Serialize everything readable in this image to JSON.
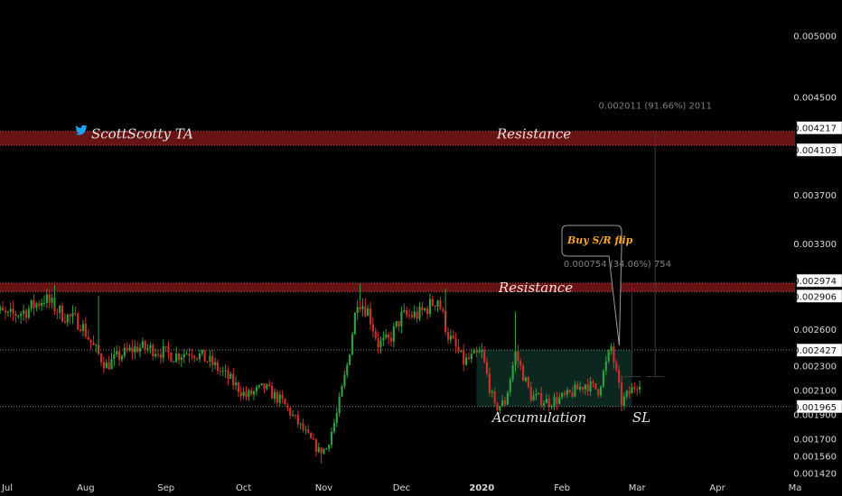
{
  "author": {
    "handle": "ScottScotty TA",
    "icon": "twitter-bird-icon"
  },
  "colors": {
    "background": "#000000",
    "up": "#2e9e3e",
    "down": "#c9302c",
    "resistance": "#8b1a1a",
    "accumulation": "#0e2e24",
    "callout_text": "#f5a623",
    "twitter": "#1da1f2"
  },
  "annotations": {
    "resistance_top": "Resistance",
    "resistance_mid": "Resistance",
    "accumulation": "Accumulation",
    "stop_loss": "SL",
    "callout": "Buy S/R flip",
    "measure_large": "0.002011 (91.66%) 2011",
    "measure_small": "0.000754 (34.06%) 754"
  },
  "chart_data": {
    "type": "candlestick",
    "title": "",
    "xlabel": "",
    "ylabel": "",
    "y_axis_position": "right",
    "ylim": [
      0.00138,
      0.00516
    ],
    "y_ticks": [
      "0.005000",
      "0.004500",
      "0.003700",
      "0.003300",
      "0.002600",
      "0.002300",
      "0.002100",
      "0.001900",
      "0.001700",
      "0.001560",
      "0.001420"
    ],
    "x_ticks": [
      {
        "label": "Jul",
        "date": "2019-07-01"
      },
      {
        "label": "Aug",
        "date": "2019-08-01"
      },
      {
        "label": "Sep",
        "date": "2019-09-01"
      },
      {
        "label": "Oct",
        "date": "2019-10-01"
      },
      {
        "label": "Nov",
        "date": "2019-11-01"
      },
      {
        "label": "Dec",
        "date": "2019-12-01"
      },
      {
        "label": "2020",
        "date": "2020-01-01",
        "bold": true
      },
      {
        "label": "Feb",
        "date": "2020-02-01"
      },
      {
        "label": "Mar",
        "date": "2020-03-01"
      },
      {
        "label": "Apr",
        "date": "2020-04-01"
      },
      {
        "label": "Ma",
        "date": "2020-05-01"
      }
    ],
    "price_tags": [
      "0.004217",
      "0.004103",
      "0.002974",
      "0.002906",
      "0.002427",
      "0.001965"
    ],
    "resistance_zones": [
      {
        "label": "Resistance",
        "low": 0.004103,
        "high": 0.004217
      },
      {
        "label": "Resistance",
        "low": 0.002906,
        "high": 0.002974
      }
    ],
    "accumulation_zone": {
      "label": "Accumulation",
      "low": 0.001965,
      "high": 0.002427,
      "start": "2019-12-30",
      "end": "2020-02-28"
    },
    "guide_lines": [
      0.002427,
      0.001965
    ],
    "callout": {
      "text": "Buy S/R flip",
      "date": "2020-02-21",
      "price": 0.00245
    },
    "measures": [
      {
        "text": "0.002011 (91.66%) 2011",
        "date": "2020-03-08",
        "from": 0.00221,
        "to": 0.00421
      },
      {
        "text": "0.000754 (34.06%) 754",
        "date": "2020-02-28",
        "from": 0.00221,
        "to": 0.00296
      }
    ],
    "series_path": [
      [
        "2019-06-25",
        0.00278
      ],
      [
        "2019-07-02",
        0.0027
      ],
      [
        "2019-07-09",
        0.00275
      ],
      [
        "2019-07-16",
        0.00285
      ],
      [
        "2019-07-23",
        0.00272
      ],
      [
        "2019-07-30",
        0.00265
      ],
      [
        "2019-08-04",
        0.00245
      ],
      [
        "2019-08-09",
        0.0023
      ],
      [
        "2019-08-14",
        0.00238
      ],
      [
        "2019-08-21",
        0.00245
      ],
      [
        "2019-08-28",
        0.00243
      ],
      [
        "2019-09-04",
        0.00238
      ],
      [
        "2019-09-11",
        0.00242
      ],
      [
        "2019-09-18",
        0.00233
      ],
      [
        "2019-09-25",
        0.0022
      ],
      [
        "2019-10-02",
        0.00205
      ],
      [
        "2019-10-09",
        0.00212
      ],
      [
        "2019-10-16",
        0.002
      ],
      [
        "2019-10-23",
        0.0018
      ],
      [
        "2019-10-30",
        0.0016
      ],
      [
        "2019-11-02",
        0.00162
      ],
      [
        "2019-11-06",
        0.0019
      ],
      [
        "2019-11-10",
        0.0023
      ],
      [
        "2019-11-14",
        0.00285
      ],
      [
        "2019-11-18",
        0.00275
      ],
      [
        "2019-11-22",
        0.00248
      ],
      [
        "2019-11-26",
        0.0025
      ],
      [
        "2019-12-01",
        0.0027
      ],
      [
        "2019-12-08",
        0.00272
      ],
      [
        "2019-12-15",
        0.00285
      ],
      [
        "2019-12-19",
        0.00255
      ],
      [
        "2019-12-25",
        0.00233
      ],
      [
        "2020-01-01",
        0.0024
      ],
      [
        "2020-01-06",
        0.00195
      ],
      [
        "2020-01-10",
        0.002
      ],
      [
        "2020-01-14",
        0.0024
      ],
      [
        "2020-01-20",
        0.00205
      ],
      [
        "2020-01-27",
        0.002
      ],
      [
        "2020-02-03",
        0.00205
      ],
      [
        "2020-02-10",
        0.00215
      ],
      [
        "2020-02-15",
        0.0021
      ],
      [
        "2020-02-20",
        0.00245
      ],
      [
        "2020-02-24",
        0.002
      ],
      [
        "2020-03-02",
        0.00218
      ]
    ]
  }
}
